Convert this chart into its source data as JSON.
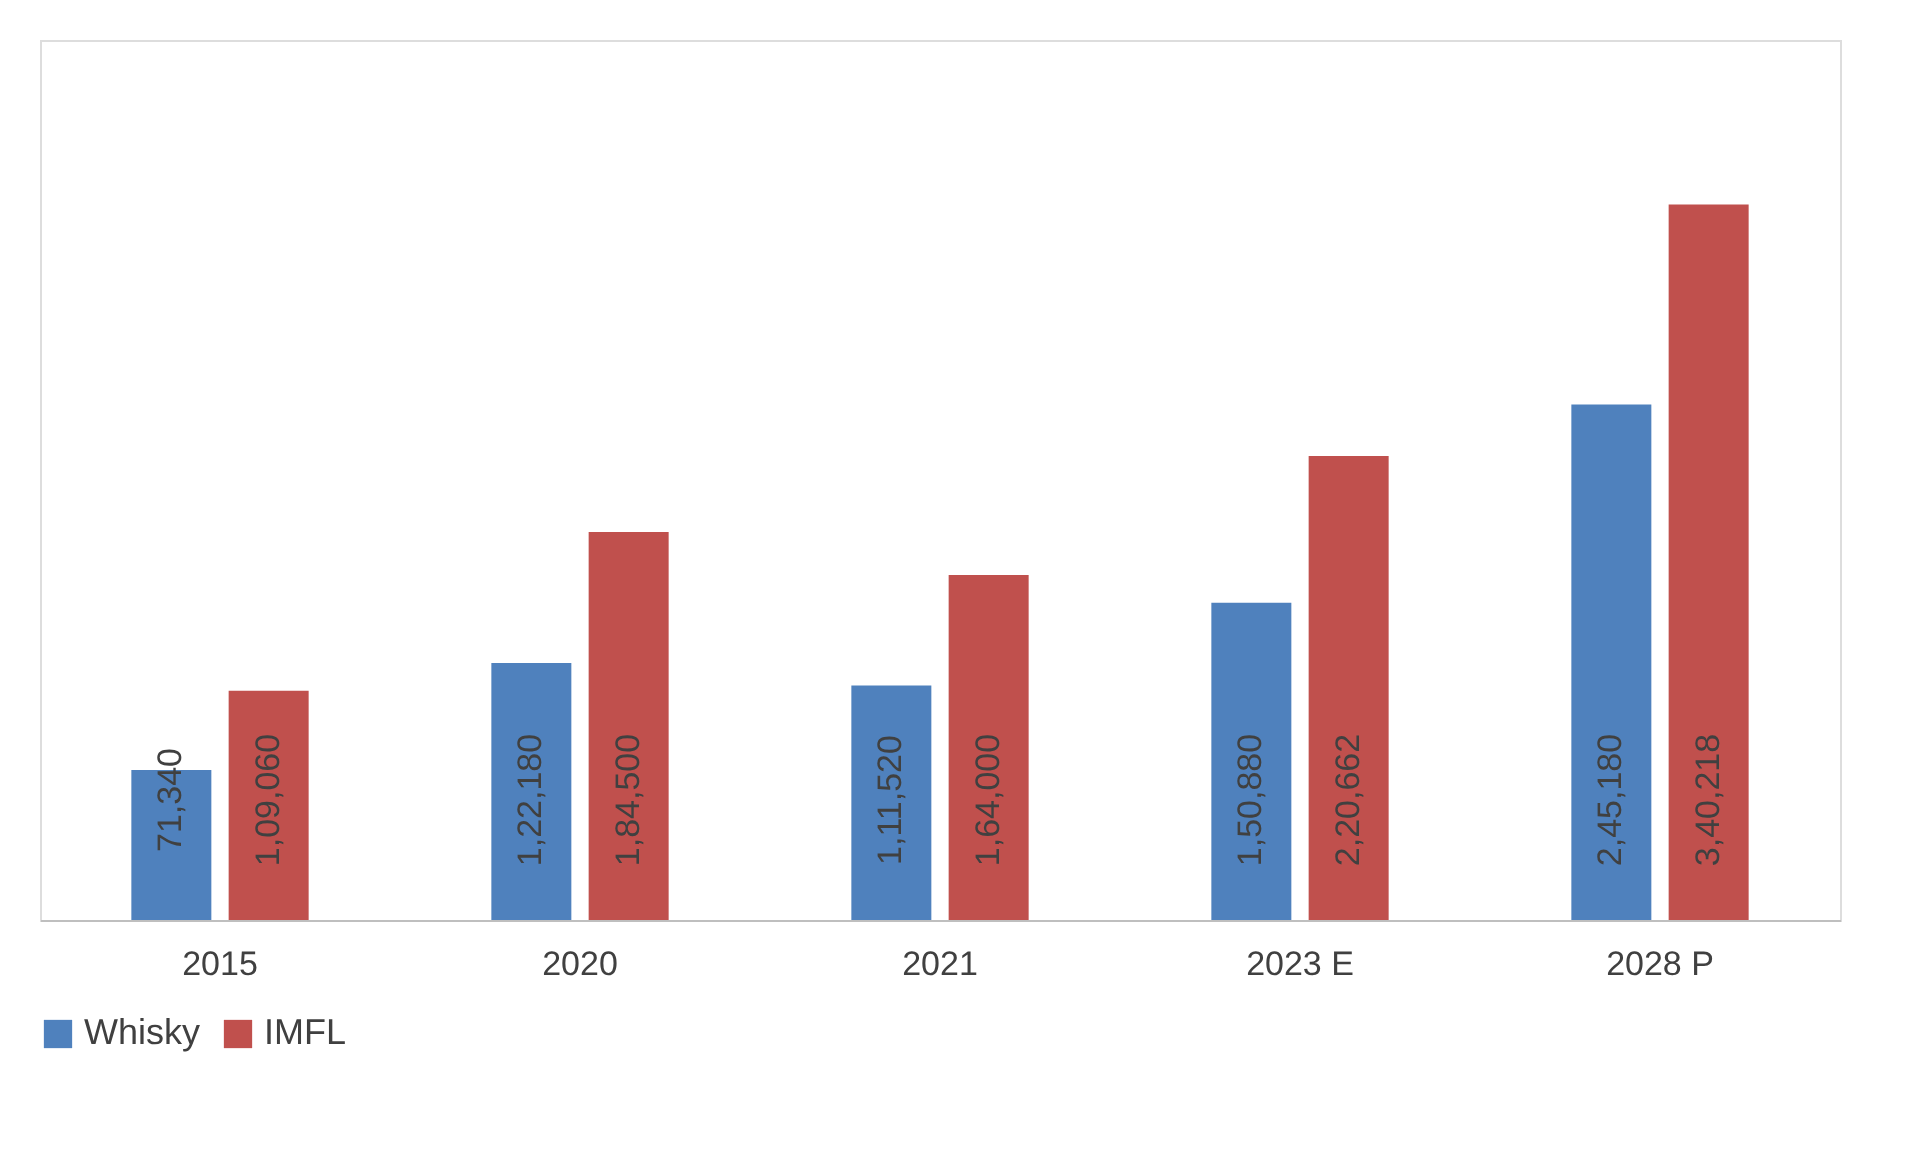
{
  "chart_data": {
    "type": "bar",
    "categories": [
      "2015",
      "2020",
      "2021",
      "2023 E",
      "2028 P"
    ],
    "series": [
      {
        "name": "Whisky",
        "color": "#4f81bd",
        "values": [
          71340,
          122180,
          111520,
          150880,
          245180
        ],
        "value_labels": [
          "71,340",
          "1,22,180",
          "1,11,520",
          "1,50,880",
          "2,45,180"
        ]
      },
      {
        "name": "IMFL",
        "color": "#c0504d",
        "values": [
          109060,
          184500,
          164000,
          220662,
          340218
        ],
        "value_labels": [
          "1,09,060",
          "1,84,500",
          "1,64,000",
          "2,20,662",
          "3,40,218"
        ]
      }
    ],
    "legend": "bottom",
    "grid": false
  }
}
